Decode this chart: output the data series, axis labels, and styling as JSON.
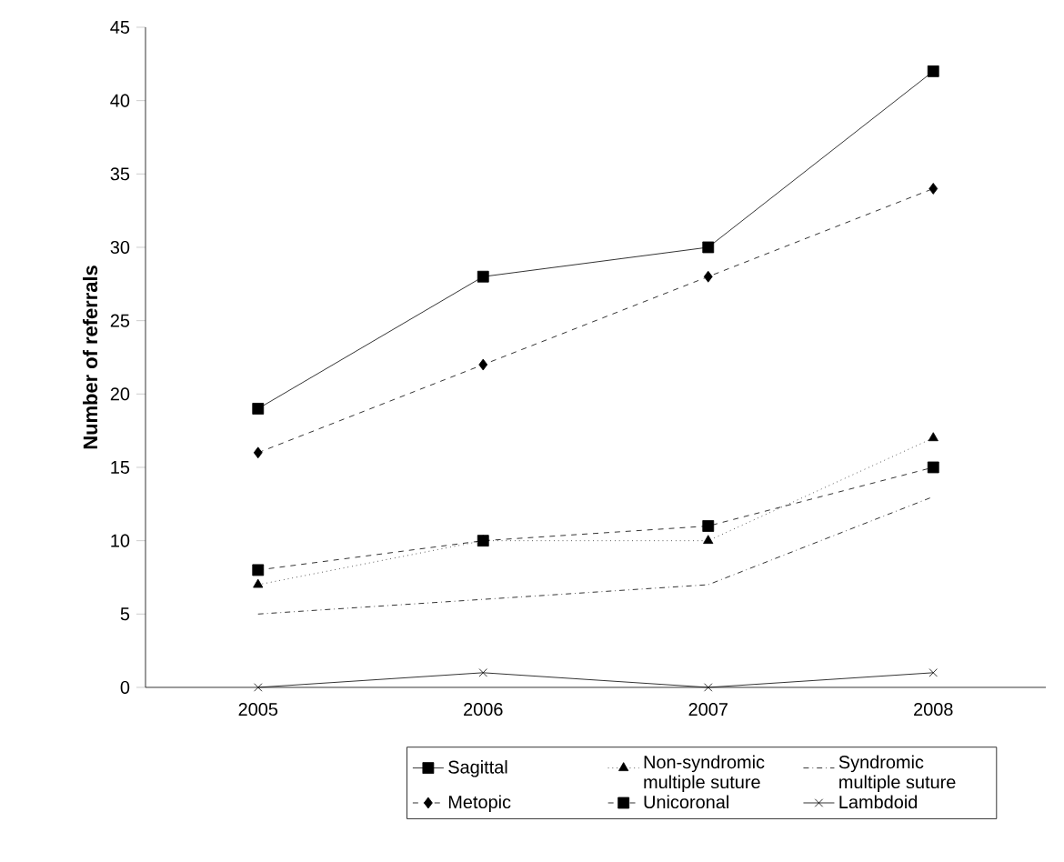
{
  "chart_data": {
    "type": "line",
    "ylabel": "Number of referrals",
    "categories": [
      "2005",
      "2006",
      "2007",
      "2008"
    ],
    "series": [
      {
        "name": "Sagittal",
        "color": "#000000",
        "values": [
          19,
          28,
          30,
          42
        ],
        "marker": "square",
        "line_style": "solid"
      },
      {
        "name": "Non-syndromic multiple suture",
        "color": "#000000",
        "values": [
          7,
          10,
          10,
          17
        ],
        "marker": "triangle",
        "line_style": "dotted"
      },
      {
        "name": "Syndromic multiple suture",
        "color": "#000000",
        "values": [
          5,
          6,
          7,
          13
        ],
        "marker": "none",
        "line_style": "dashdot"
      },
      {
        "name": "Metopic",
        "color": "#000000",
        "values": [
          16,
          22,
          28,
          34
        ],
        "marker": "diamond",
        "line_style": "dashed"
      },
      {
        "name": "Unicoronal",
        "color": "#000000",
        "values": [
          8,
          10,
          11,
          15
        ],
        "marker": "square",
        "line_style": "dashed"
      },
      {
        "name": "Lambdoid",
        "color": "#000000",
        "values": [
          0,
          1,
          0,
          1
        ],
        "marker": "cross",
        "line_style": "solid"
      }
    ],
    "ylim": [
      0,
      45
    ],
    "yticks": [
      0,
      5,
      10,
      15,
      20,
      25,
      30,
      35,
      40,
      45
    ],
    "grid": false,
    "legend": "bottom"
  }
}
